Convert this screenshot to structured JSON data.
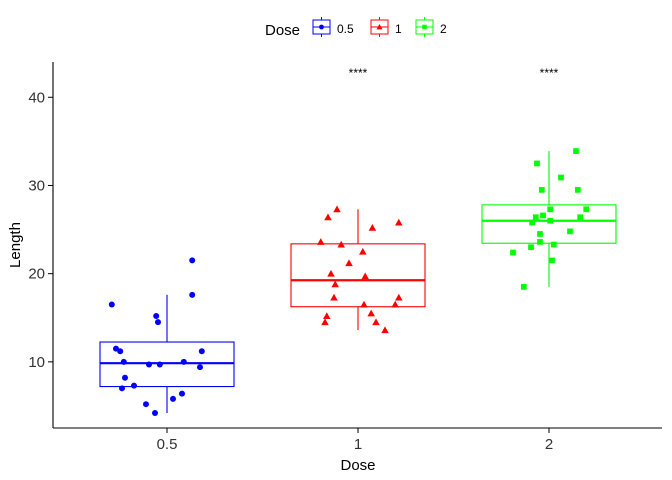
{
  "chart_data": {
    "type": "box",
    "title": "",
    "xlabel": "Dose",
    "ylabel": "Length",
    "ylim": [
      2.5,
      44
    ],
    "y_ticks": [
      10,
      20,
      30,
      40
    ],
    "categories": [
      "0.5",
      "1",
      "2"
    ],
    "legend": {
      "title": "Dose",
      "position": "top",
      "entries": [
        "0.5",
        "1",
        "2"
      ]
    },
    "significance_labels": [
      "",
      "****",
      "****"
    ],
    "grid": false,
    "series": [
      {
        "category": "0.5",
        "color": "#0000ff",
        "marker": "circle",
        "box": {
          "whisker_low": 4.2,
          "q1": 7.2,
          "median": 9.85,
          "q3": 12.25,
          "whisker_high": 17.6
        },
        "outliers": [],
        "points": [
          {
            "jitter": -0.92,
            "y": 16.5
          },
          {
            "jitter": -0.85,
            "y": 11.5
          },
          {
            "jitter": -0.78,
            "y": 11.2
          },
          {
            "jitter": -0.72,
            "y": 10.0
          },
          {
            "jitter": -0.7,
            "y": 8.2
          },
          {
            "jitter": -0.75,
            "y": 7.0
          },
          {
            "jitter": -0.55,
            "y": 7.3
          },
          {
            "jitter": -0.3,
            "y": 9.7
          },
          {
            "jitter": -0.12,
            "y": 9.7
          },
          {
            "jitter": -0.35,
            "y": 5.2
          },
          {
            "jitter": -0.2,
            "y": 4.2
          },
          {
            "jitter": 0.1,
            "y": 5.8
          },
          {
            "jitter": 0.25,
            "y": 6.4
          },
          {
            "jitter": 0.28,
            "y": 10.0
          },
          {
            "jitter": -0.18,
            "y": 15.2
          },
          {
            "jitter": -0.15,
            "y": 14.5
          },
          {
            "jitter": 0.42,
            "y": 17.6
          },
          {
            "jitter": 0.42,
            "y": 21.5
          },
          {
            "jitter": 0.58,
            "y": 11.2
          },
          {
            "jitter": 0.55,
            "y": 9.4
          }
        ]
      },
      {
        "category": "1",
        "color": "#ff0000",
        "marker": "triangle",
        "box": {
          "whisker_low": 13.6,
          "q1": 16.25,
          "median": 19.25,
          "q3": 23.38,
          "whisker_high": 27.3
        },
        "outliers": [],
        "points": [
          {
            "jitter": -0.62,
            "y": 23.6
          },
          {
            "jitter": -0.5,
            "y": 26.4
          },
          {
            "jitter": -0.35,
            "y": 27.3
          },
          {
            "jitter": -0.28,
            "y": 23.3
          },
          {
            "jitter": -0.45,
            "y": 20.0
          },
          {
            "jitter": -0.38,
            "y": 18.8
          },
          {
            "jitter": -0.4,
            "y": 17.3
          },
          {
            "jitter": -0.52,
            "y": 15.2
          },
          {
            "jitter": -0.55,
            "y": 14.5
          },
          {
            "jitter": -0.15,
            "y": 21.2
          },
          {
            "jitter": 0.08,
            "y": 22.5
          },
          {
            "jitter": 0.12,
            "y": 19.7
          },
          {
            "jitter": 0.24,
            "y": 25.2
          },
          {
            "jitter": 0.68,
            "y": 25.8
          },
          {
            "jitter": 0.1,
            "y": 16.5
          },
          {
            "jitter": 0.22,
            "y": 15.5
          },
          {
            "jitter": 0.3,
            "y": 14.5
          },
          {
            "jitter": 0.45,
            "y": 13.6
          },
          {
            "jitter": 0.68,
            "y": 17.3
          },
          {
            "jitter": 0.62,
            "y": 16.5
          }
        ]
      },
      {
        "category": "2",
        "color": "#00ff00",
        "marker": "square",
        "box": {
          "whisker_low": 18.5,
          "q1": 23.45,
          "median": 26.0,
          "q3": 27.8,
          "whisker_high": 33.9
        },
        "outliers": [],
        "points": [
          {
            "jitter": -0.6,
            "y": 22.4
          },
          {
            "jitter": -0.42,
            "y": 18.5
          },
          {
            "jitter": -0.3,
            "y": 23.0
          },
          {
            "jitter": -0.28,
            "y": 25.8
          },
          {
            "jitter": -0.22,
            "y": 26.4
          },
          {
            "jitter": -0.15,
            "y": 24.5
          },
          {
            "jitter": -0.15,
            "y": 23.6
          },
          {
            "jitter": -0.1,
            "y": 26.6
          },
          {
            "jitter": -0.12,
            "y": 29.5
          },
          {
            "jitter": -0.2,
            "y": 32.5
          },
          {
            "jitter": 0.02,
            "y": 27.3
          },
          {
            "jitter": 0.02,
            "y": 26.0
          },
          {
            "jitter": 0.05,
            "y": 21.5
          },
          {
            "jitter": 0.08,
            "y": 23.3
          },
          {
            "jitter": 0.2,
            "y": 30.9
          },
          {
            "jitter": 0.35,
            "y": 24.8
          },
          {
            "jitter": 0.52,
            "y": 26.4
          },
          {
            "jitter": 0.48,
            "y": 29.5
          },
          {
            "jitter": 0.45,
            "y": 33.9
          },
          {
            "jitter": 0.62,
            "y": 27.3
          }
        ]
      }
    ]
  }
}
